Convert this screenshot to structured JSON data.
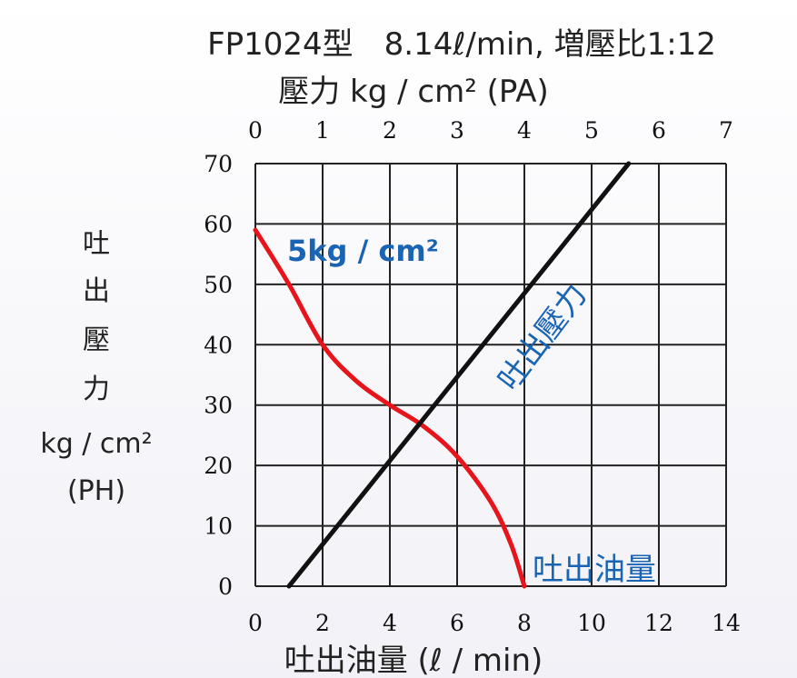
{
  "chart_data": {
    "type": "line",
    "title": "FP1024型　8.14ℓ/min, 増壓比1:12",
    "top_axis": {
      "label": "壓力 kg / cm² (PA)",
      "range": [
        0,
        7
      ],
      "ticks": [
        "0",
        "1",
        "2",
        "3",
        "4",
        "5",
        "6",
        "7"
      ]
    },
    "x_axis": {
      "label": "吐出油量 (ℓ / min)",
      "range": [
        0,
        14
      ],
      "ticks": [
        "0",
        "2",
        "4",
        "6",
        "8",
        "10",
        "12",
        "14"
      ]
    },
    "y_axis": {
      "label_lines": [
        "吐",
        "出",
        "壓",
        "力",
        "kg / cm²",
        "(PH)"
      ],
      "range": [
        0,
        70
      ],
      "ticks": [
        "0",
        "10",
        "20",
        "30",
        "40",
        "50",
        "60",
        "70"
      ]
    },
    "grid": true,
    "series": [
      {
        "name": "吐出油量",
        "color": "#e8141c",
        "x_axis": "bottom",
        "annotation": "5kg / cm²",
        "points": [
          [
            0,
            59
          ],
          [
            1,
            50
          ],
          [
            2,
            40
          ],
          [
            3,
            34
          ],
          [
            4,
            30
          ],
          [
            5,
            26.5
          ],
          [
            6,
            21.5
          ],
          [
            7,
            14
          ],
          [
            7.6,
            7
          ],
          [
            8,
            0
          ]
        ]
      },
      {
        "name": "吐出壓力",
        "color": "#111111",
        "x_axis": "top",
        "points": [
          [
            0.5,
            0
          ],
          [
            5.55,
            70
          ]
        ]
      }
    ]
  }
}
